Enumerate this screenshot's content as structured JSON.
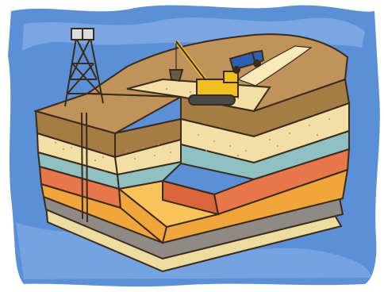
{
  "illustration": {
    "subject": "cutaway-geology-block",
    "elements": [
      "oil-derrick-icon",
      "excavator-icon",
      "dump-truck-icon",
      "water-background"
    ],
    "colors": {
      "water": "#5b8fd6",
      "water_light": "#8fb6ea",
      "topsoil": "#bf935a",
      "topsoil_dark": "#a67c45",
      "sand": "#f3dfa6",
      "sand_dots": "#b89a5a",
      "teal_layer": "#8fc1c3",
      "orange_layer": "#e8784a",
      "orange_dark": "#d9653a",
      "gold_layer": "#f0a63a",
      "gold_light": "#f7c35a",
      "gray_layer": "#8f8a86",
      "bottom_layer": "#ecdca0",
      "outline": "#3a2a1c",
      "excavator": "#f2c01e",
      "truck": "#2f5fb0"
    }
  }
}
